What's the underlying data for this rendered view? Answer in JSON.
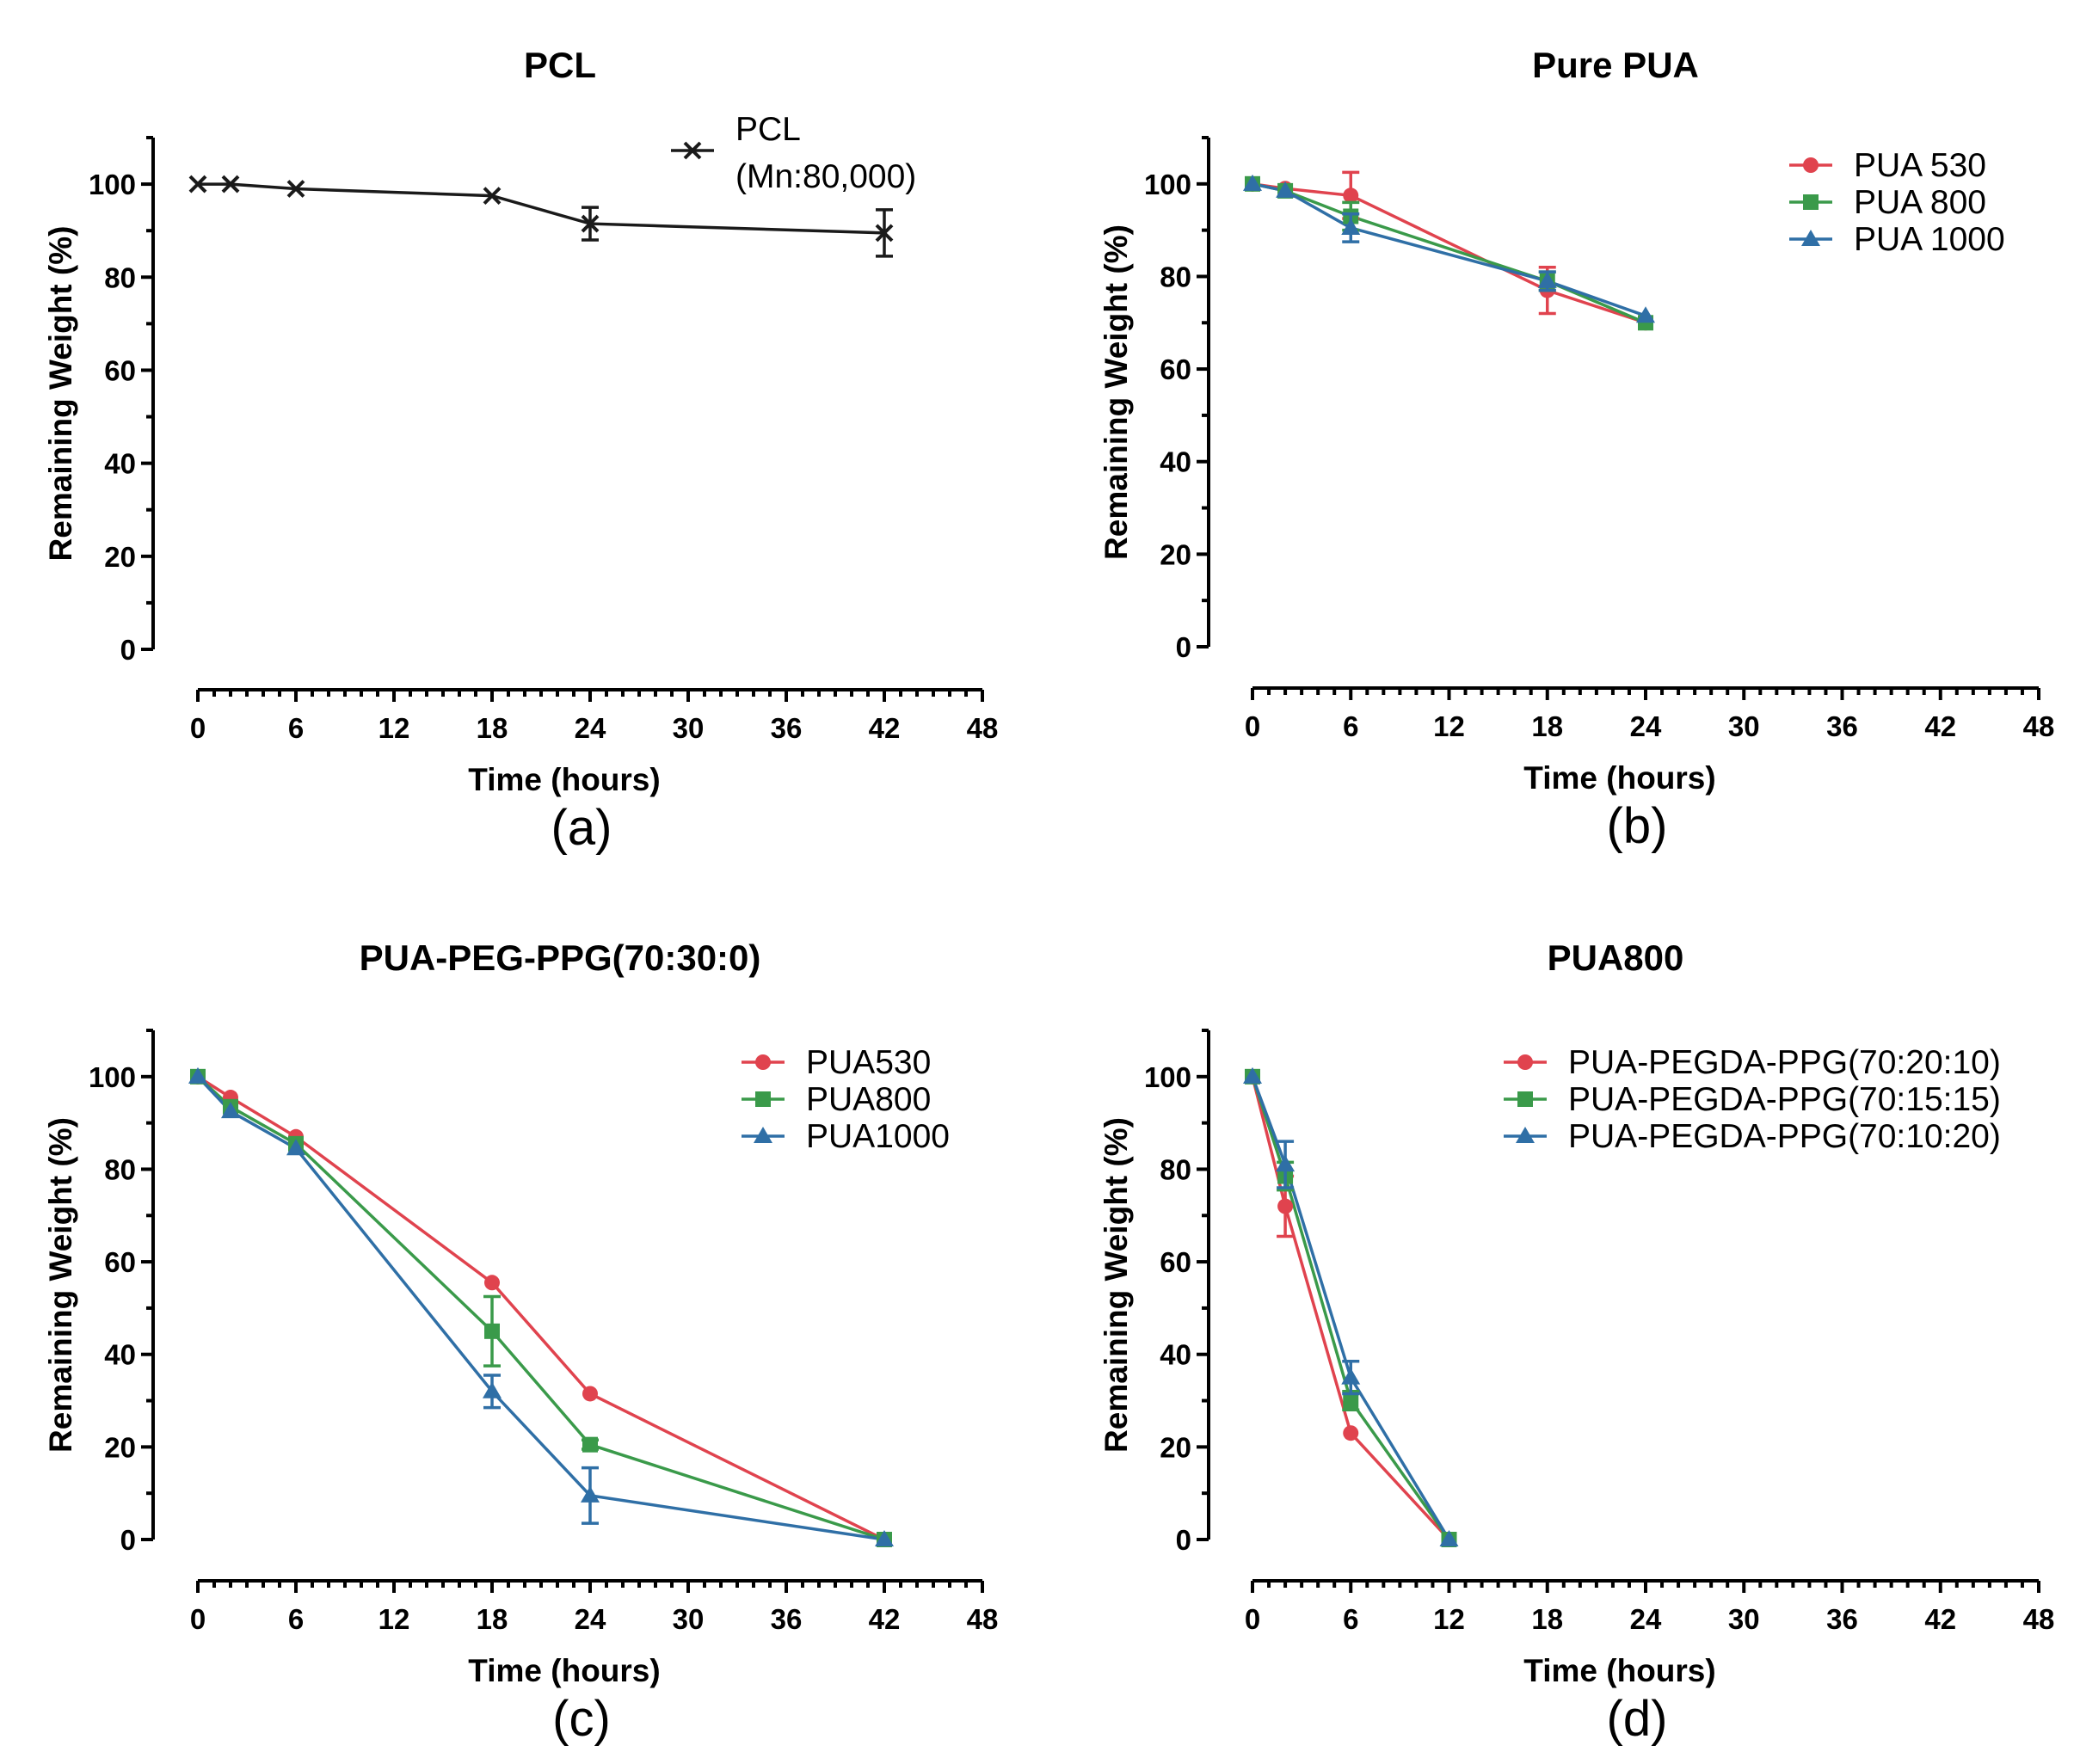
{
  "figure": {
    "description_panels": [
      "a",
      "b",
      "c",
      "d"
    ]
  },
  "chart_data": [
    {
      "type": "line",
      "panel_label": "(a)",
      "title": "PCL",
      "xlabel": "Time (hours)",
      "ylabel": "Remaining Weight (%)",
      "xlim": [
        0,
        48
      ],
      "ylim": [
        0,
        110
      ],
      "xticks": [
        0,
        6,
        12,
        18,
        24,
        30,
        36,
        42,
        48
      ],
      "yticks": [
        0,
        20,
        40,
        60,
        80,
        100
      ],
      "legend_position": "top-right",
      "series": [
        {
          "name": "PCL",
          "name_line2": "(Mn:80,000)",
          "color": "#1a1a1a",
          "marker": "x",
          "x": [
            0,
            2,
            6,
            18,
            24,
            42
          ],
          "values": [
            100,
            100,
            99,
            97.5,
            91.5,
            89.5
          ],
          "errors": [
            0,
            0,
            0,
            0,
            3.5,
            5
          ]
        }
      ]
    },
    {
      "type": "line",
      "panel_label": "(b)",
      "title": "Pure PUA",
      "xlabel": "Time (hours)",
      "ylabel": "Remaining Weight (%)",
      "xlim": [
        0,
        48
      ],
      "ylim": [
        0,
        110
      ],
      "xticks": [
        0,
        6,
        12,
        18,
        24,
        30,
        36,
        42,
        48
      ],
      "yticks": [
        0,
        20,
        40,
        60,
        80,
        100
      ],
      "legend_position": "top-right",
      "series": [
        {
          "name": "PUA 530",
          "color": "#e0434e",
          "marker": "circle",
          "x": [
            0,
            2,
            6,
            18,
            24
          ],
          "values": [
            100,
            99,
            97.5,
            77,
            70
          ],
          "errors": [
            0,
            0,
            5,
            5,
            0
          ]
        },
        {
          "name": "PUA 800",
          "color": "#3a9a4a",
          "marker": "square",
          "x": [
            0,
            2,
            6,
            18,
            24
          ],
          "values": [
            100,
            98.5,
            93,
            79,
            70
          ],
          "errors": [
            0,
            0,
            3,
            2,
            0
          ]
        },
        {
          "name": "PUA 1000",
          "color": "#2f6fa6",
          "marker": "triangle",
          "x": [
            0,
            2,
            6,
            18,
            24
          ],
          "values": [
            100,
            98.5,
            90.5,
            79,
            71.5
          ],
          "errors": [
            0,
            0,
            3,
            2,
            0
          ]
        }
      ]
    },
    {
      "type": "line",
      "panel_label": "(c)",
      "title": "PUA-PEG-PPG(70:30:0)",
      "xlabel": "Time (hours)",
      "ylabel": "Remaining Weight (%)",
      "xlim": [
        0,
        48
      ],
      "ylim": [
        0,
        110
      ],
      "xticks": [
        0,
        6,
        12,
        18,
        24,
        30,
        36,
        42,
        48
      ],
      "yticks": [
        0,
        20,
        40,
        60,
        80,
        100
      ],
      "legend_position": "top-right",
      "series": [
        {
          "name": "PUA530",
          "color": "#e0434e",
          "marker": "circle",
          "x": [
            0,
            2,
            6,
            18,
            24,
            42
          ],
          "values": [
            100,
            95.5,
            87,
            55.5,
            31.5,
            0
          ],
          "errors": [
            0,
            0,
            0,
            0,
            0,
            0
          ]
        },
        {
          "name": "PUA800",
          "color": "#3a9a4a",
          "marker": "square",
          "x": [
            0,
            2,
            6,
            18,
            24,
            42
          ],
          "values": [
            100,
            93.5,
            85.5,
            45,
            20.5,
            0
          ],
          "errors": [
            0,
            0,
            0,
            7.5,
            1,
            0
          ]
        },
        {
          "name": "PUA1000",
          "color": "#2f6fa6",
          "marker": "triangle",
          "x": [
            0,
            2,
            6,
            18,
            24,
            42
          ],
          "values": [
            100,
            92.5,
            84.5,
            32,
            9.5,
            0
          ],
          "errors": [
            0,
            0,
            0,
            3.5,
            6,
            0
          ]
        }
      ]
    },
    {
      "type": "line",
      "panel_label": "(d)",
      "title": "PUA800",
      "xlabel": "Time (hours)",
      "ylabel": "Remaining Weight (%)",
      "xlim": [
        0,
        48
      ],
      "ylim": [
        0,
        110
      ],
      "xticks": [
        0,
        6,
        12,
        18,
        24,
        30,
        36,
        42,
        48
      ],
      "yticks": [
        0,
        20,
        40,
        60,
        80,
        100
      ],
      "legend_position": "top-right",
      "series": [
        {
          "name": "PUA-PEGDA-PPG(70:20:10)",
          "color": "#e0434e",
          "marker": "circle",
          "x": [
            0,
            2,
            6,
            12
          ],
          "values": [
            100,
            72,
            23,
            0
          ],
          "errors": [
            0,
            6.5,
            0,
            0
          ]
        },
        {
          "name": "PUA-PEGDA-PPG(70:15:15)",
          "color": "#3a9a4a",
          "marker": "square",
          "x": [
            0,
            2,
            6,
            12
          ],
          "values": [
            100,
            78.5,
            30,
            0
          ],
          "errors": [
            0,
            3,
            2,
            0
          ]
        },
        {
          "name": "PUA-PEGDA-PPG(70:10:20)",
          "color": "#2f6fa6",
          "marker": "triangle",
          "x": [
            0,
            2,
            6,
            12
          ],
          "values": [
            100,
            81,
            35,
            0
          ],
          "errors": [
            0,
            5,
            3.5,
            0
          ]
        }
      ]
    }
  ]
}
